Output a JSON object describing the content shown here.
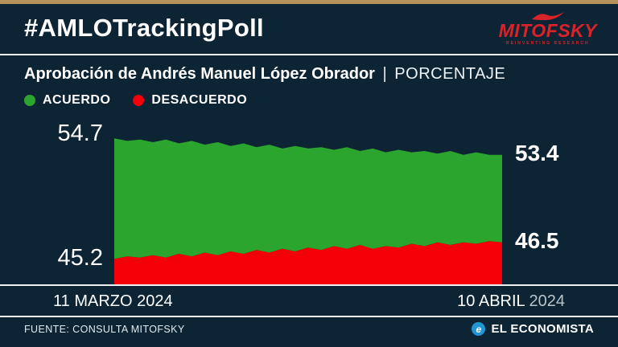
{
  "header": {
    "hashtag": "#AMLOTrackingPoll",
    "brand": {
      "name": "MITOFSKY",
      "tagline": "REINVENTING RESEARCH",
      "color": "#d8232a"
    }
  },
  "title": {
    "main": "Aprobación de Andrés Manuel López Obrador",
    "separator": "|",
    "sub": "PORCENTAJE"
  },
  "legend": [
    {
      "label": "ACUERDO",
      "color": "#2ba52e"
    },
    {
      "label": "DESACUERDO",
      "color": "#f40009"
    }
  ],
  "value_labels": {
    "acuerdo_start": "54.7",
    "acuerdo_end": "53.4",
    "desacuerdo_start": "45.2",
    "desacuerdo_end": "46.5"
  },
  "axis": {
    "start_date": "11 MARZO 2024",
    "end_date_main": "10 ABRIL",
    "end_date_year": "2024"
  },
  "chart_data": {
    "type": "area",
    "title": "Aprobación de Andrés Manuel López Obrador (porcentaje)",
    "x_start_label": "11 MARZO 2024",
    "x_end_label": "10 ABRIL 2024",
    "ylim": [
      43.2,
      55.6
    ],
    "legend_position": "top-left",
    "grid": false,
    "series": [
      {
        "name": "ACUERDO",
        "color": "#2ba52e",
        "start": 54.7,
        "end": 53.4,
        "values": [
          54.7,
          54.5,
          54.6,
          54.4,
          54.6,
          54.3,
          54.5,
          54.2,
          54.4,
          54.1,
          54.3,
          54.0,
          54.2,
          53.9,
          54.1,
          53.9,
          54.0,
          53.8,
          54.0,
          53.7,
          53.9,
          53.6,
          53.8,
          53.6,
          53.7,
          53.5,
          53.7,
          53.4,
          53.6,
          53.4,
          53.4
        ]
      },
      {
        "name": "DESACUERDO",
        "color": "#f40009",
        "start": 45.2,
        "end": 46.5,
        "values": [
          45.2,
          45.4,
          45.3,
          45.5,
          45.3,
          45.6,
          45.4,
          45.7,
          45.5,
          45.8,
          45.6,
          45.9,
          45.7,
          46.0,
          45.8,
          46.1,
          45.9,
          46.2,
          46.0,
          46.3,
          46.0,
          46.2,
          46.1,
          46.4,
          46.2,
          46.5,
          46.3,
          46.5,
          46.4,
          46.6,
          46.5
        ]
      }
    ]
  },
  "footer": {
    "source": "FUENTE: CONSULTA MITOFSKY",
    "outlet": "EL ECONOMISTA",
    "outlet_icon_letter": "e",
    "outlet_color": "#2196d3"
  }
}
